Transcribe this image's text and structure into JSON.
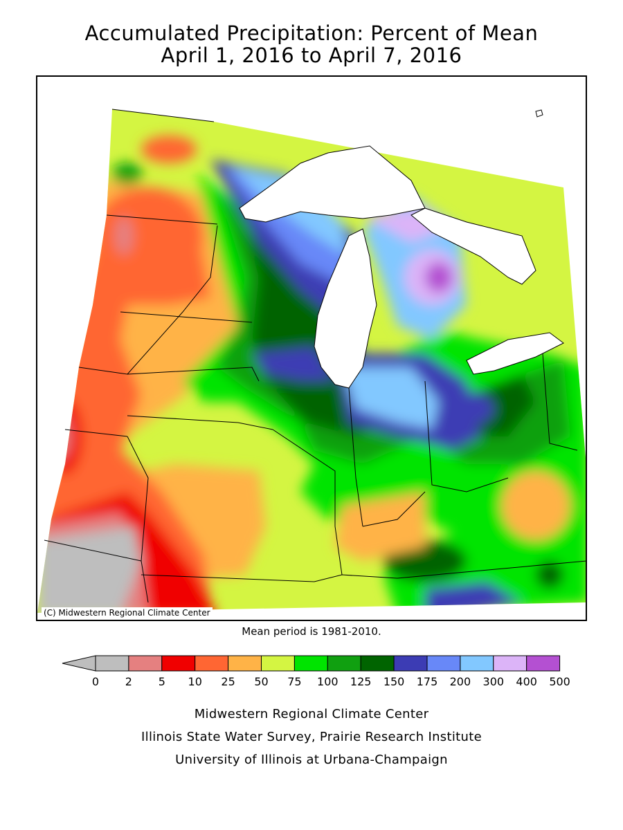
{
  "title": {
    "line1": "Accumulated Precipitation: Percent of Mean",
    "line2": "April 1, 2016 to April 7, 2016"
  },
  "map": {
    "copyright": "(C) Midwestern Regional Climate Center",
    "lake_color": "#ffffff",
    "border_color": "#000000"
  },
  "mean_period": "Mean period is 1981-2010.",
  "legend": {
    "labels": [
      "0",
      "2",
      "5",
      "10",
      "25",
      "50",
      "75",
      "100",
      "125",
      "150",
      "175",
      "200",
      "300",
      "400",
      "500"
    ],
    "colors": [
      "#bebebe",
      "#e58080",
      "#f00000",
      "#ff6633",
      "#ffb347",
      "#d4f542",
      "#00e400",
      "#10a010",
      "#006400",
      "#3c3cb4",
      "#6888f8",
      "#82c8ff",
      "#dcb4f8",
      "#b450d2"
    ]
  },
  "credits": [
    "Midwestern Regional Climate Center",
    "Illinois State Water Survey, Prairie Research Institute",
    "University of Illinois at Urbana-Champaign"
  ]
}
